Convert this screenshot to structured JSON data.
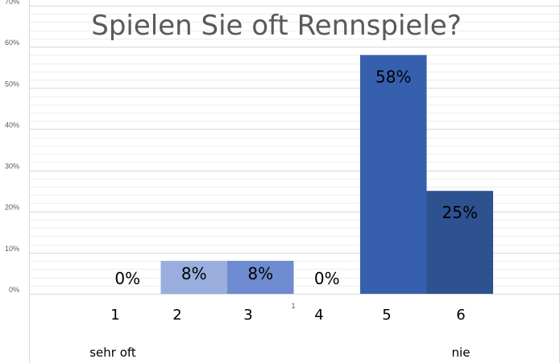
{
  "chart_data": {
    "type": "bar",
    "title": "Spielen Sie oft Rennspiele?",
    "categories": [
      "1",
      "2",
      "3",
      "4",
      "5",
      "6"
    ],
    "values": [
      0,
      8,
      8,
      0,
      58,
      25
    ],
    "value_labels": [
      "0%",
      "8%",
      "8%",
      "0%",
      "58%",
      "25%"
    ],
    "bar_colors": [
      "#c7d2ee",
      "#9aaedd",
      "#6f8bcf",
      "#4a6fc0",
      "#365fae",
      "#2e5190"
    ],
    "yticks": [
      "0%",
      "10%",
      "20%",
      "30%",
      "40%",
      "50%",
      "60%",
      "70%"
    ],
    "ylim": [
      0,
      70
    ],
    "grid": true,
    "end_labels": {
      "low": "sehr oft",
      "high": "nie"
    },
    "note": "1"
  }
}
